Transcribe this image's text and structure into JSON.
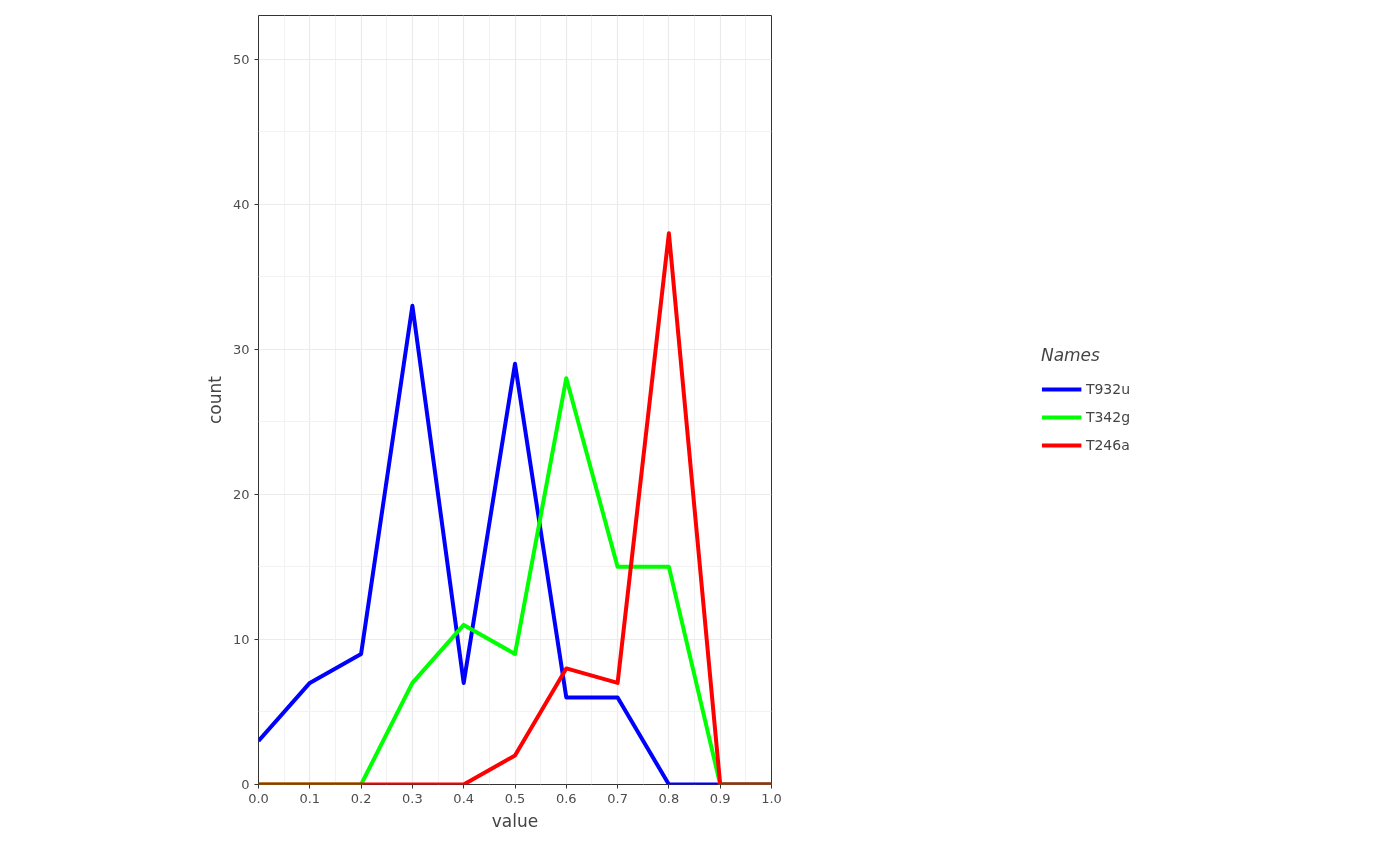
{
  "chart_data": {
    "type": "line",
    "xlabel": "value",
    "ylabel": "count",
    "legend_title": "Names",
    "legend": "right",
    "grid": true,
    "x": [
      0.0,
      0.1,
      0.2,
      0.3,
      0.4,
      0.5,
      0.6,
      0.7,
      0.8,
      0.9,
      1.0
    ],
    "xlim": [
      0,
      1
    ],
    "xticks": [
      {
        "value": 0,
        "label": "0.0"
      },
      {
        "value": 0.1,
        "label": "0.1"
      },
      {
        "value": 0.2,
        "label": "0.2"
      },
      {
        "value": 0.3,
        "label": "0.3"
      },
      {
        "value": 0.4,
        "label": "0.4"
      },
      {
        "value": 0.5,
        "label": "0.5"
      },
      {
        "value": 0.6,
        "label": "0.6"
      },
      {
        "value": 0.7,
        "label": "0.7"
      },
      {
        "value": 0.8,
        "label": "0.8"
      },
      {
        "value": 0.9,
        "label": "0.9"
      },
      {
        "value": 1,
        "label": "1.0"
      }
    ],
    "ylim": [
      0,
      53
    ],
    "yticks": [
      0,
      10,
      20,
      30,
      40,
      50
    ],
    "series": [
      {
        "name": "T932u",
        "color": "#0000ff",
        "values": [
          3,
          7,
          9,
          33,
          7,
          29,
          6,
          6,
          0,
          0,
          0
        ]
      },
      {
        "name": "T342g",
        "color": "#00ff00",
        "values": [
          0,
          0,
          0,
          7,
          11,
          9,
          28,
          15,
          15,
          0,
          0
        ]
      },
      {
        "name": "T246a",
        "color": "#ff0000",
        "values": [
          0,
          0,
          0,
          0,
          0,
          2,
          8,
          7,
          38,
          0,
          0
        ]
      }
    ]
  }
}
